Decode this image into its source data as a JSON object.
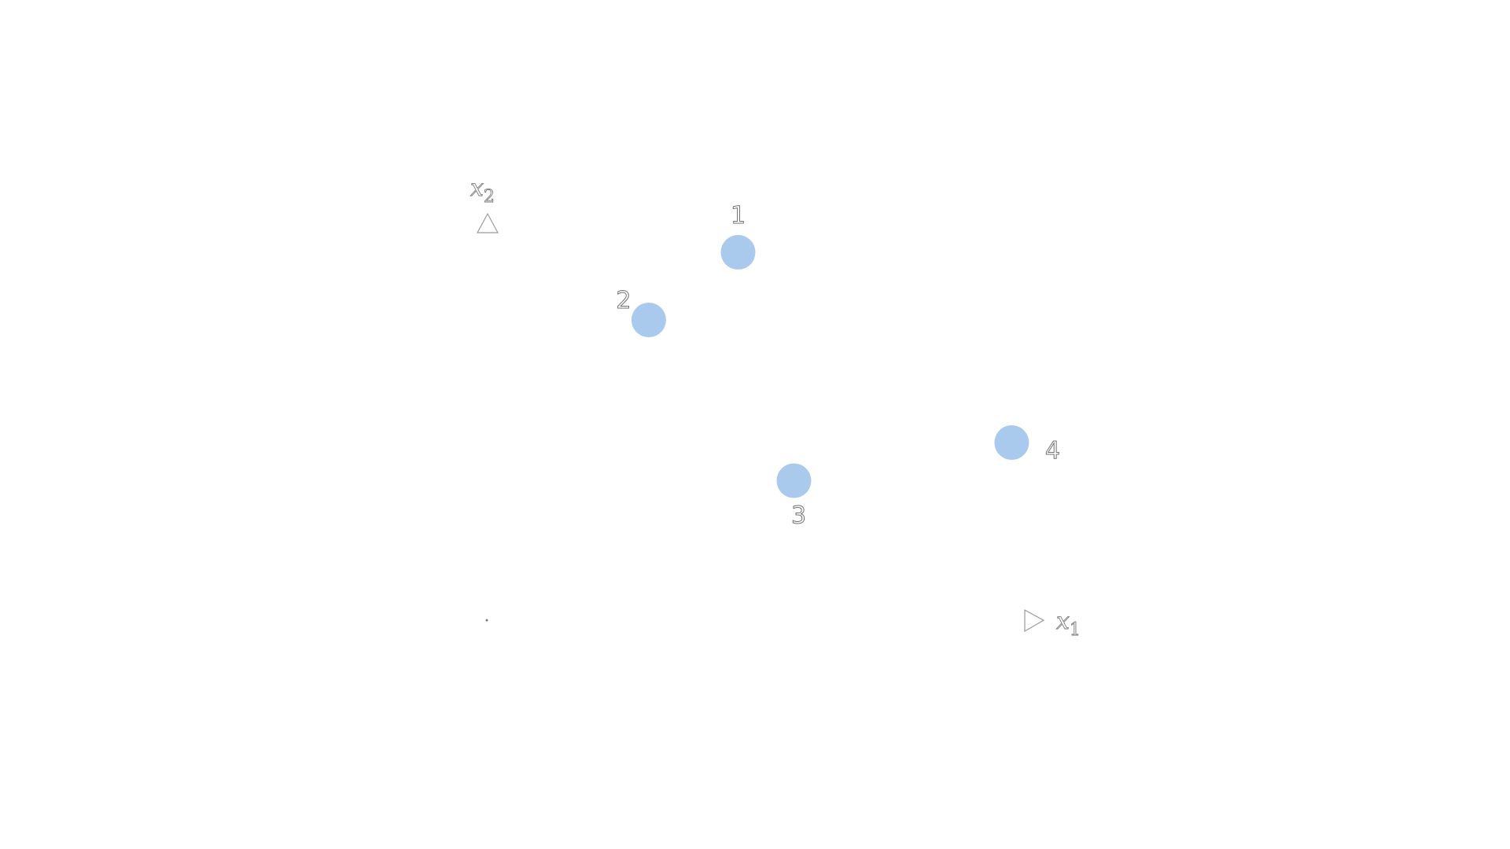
{
  "axes": {
    "x": {
      "symbol": "x",
      "subscript": "1"
    },
    "y": {
      "symbol": "x",
      "subscript": "2"
    }
  },
  "colors": {
    "point": "#a9caec",
    "axis": "#9a9a9a"
  },
  "points": [
    {
      "label": "1",
      "x": 0.45,
      "y": 0.87
    },
    {
      "label": "2",
      "x": 0.29,
      "y": 0.71
    },
    {
      "label": "3",
      "x": 0.55,
      "y": 0.33
    },
    {
      "label": "4",
      "x": 0.94,
      "y": 0.42
    }
  ]
}
